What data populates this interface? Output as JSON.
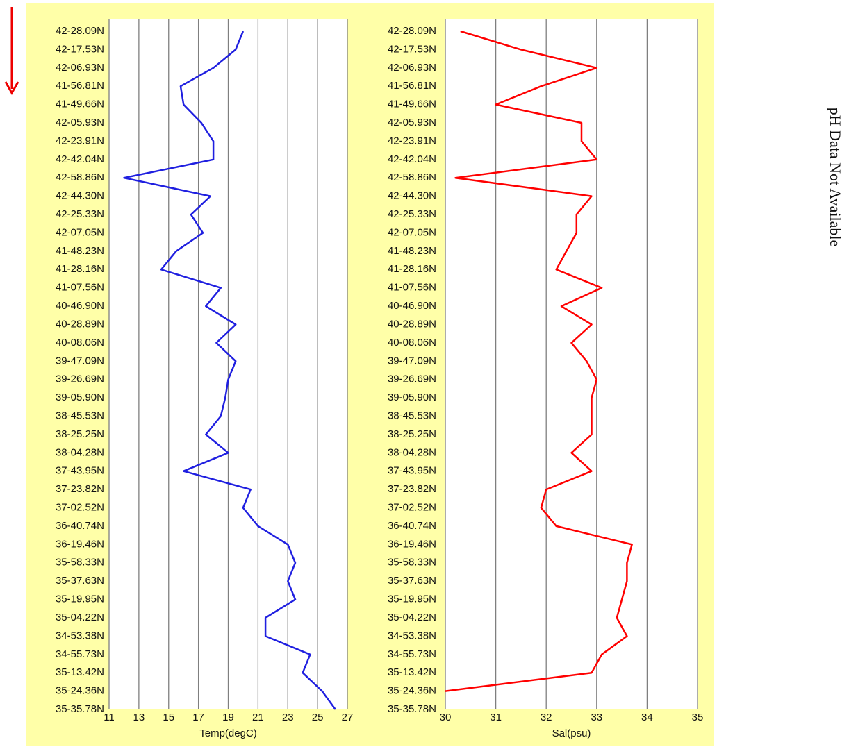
{
  "chart_data": [
    {
      "type": "line",
      "x_label": "Temp(degC)",
      "color": "#1f1fe0",
      "categories": [
        "42-28.09N",
        "42-17.53N",
        "42-06.93N",
        "41-56.81N",
        "41-49.66N",
        "42-05.93N",
        "42-23.91N",
        "42-42.04N",
        "42-58.86N",
        "42-44.30N",
        "42-25.33N",
        "42-07.05N",
        "41-48.23N",
        "41-28.16N",
        "41-07.56N",
        "40-46.90N",
        "40-28.89N",
        "40-08.06N",
        "39-47.09N",
        "39-26.69N",
        "39-05.90N",
        "38-45.53N",
        "38-25.25N",
        "38-04.28N",
        "37-43.95N",
        "37-23.82N",
        "37-02.52N",
        "36-40.74N",
        "36-19.46N",
        "35-58.33N",
        "35-37.63N",
        "35-19.95N",
        "35-04.22N",
        "34-53.38N",
        "34-55.73N",
        "35-13.42N",
        "35-24.36N",
        "35-35.78N"
      ],
      "values": [
        20,
        19.5,
        18,
        15.8,
        16,
        17.2,
        18,
        18,
        12,
        17.8,
        16.5,
        17.3,
        15.5,
        14.5,
        18.5,
        17.5,
        19.5,
        18.2,
        19.5,
        19,
        18.8,
        18.5,
        17.5,
        19,
        16,
        20.5,
        20,
        21,
        23,
        23.5,
        23,
        23.5,
        21.5,
        21.5,
        24.5,
        24,
        25.3,
        26.2
      ],
      "xlim": [
        11,
        27
      ],
      "xticks": [
        11,
        13,
        15,
        17,
        19,
        21,
        23,
        25,
        27
      ],
      "grid": true
    },
    {
      "type": "line",
      "x_label": "Sal(psu)",
      "color": "#ff0000",
      "categories": [
        "42-28.09N",
        "42-17.53N",
        "42-06.93N",
        "41-56.81N",
        "41-49.66N",
        "42-05.93N",
        "42-23.91N",
        "42-42.04N",
        "42-58.86N",
        "42-44.30N",
        "42-25.33N",
        "42-07.05N",
        "41-48.23N",
        "41-28.16N",
        "41-07.56N",
        "40-46.90N",
        "40-28.89N",
        "40-08.06N",
        "39-47.09N",
        "39-26.69N",
        "39-05.90N",
        "38-45.53N",
        "38-25.25N",
        "38-04.28N",
        "37-43.95N",
        "37-23.82N",
        "37-02.52N",
        "36-40.74N",
        "36-19.46N",
        "35-58.33N",
        "35-37.63N",
        "35-19.95N",
        "35-04.22N",
        "34-53.38N",
        "34-55.73N",
        "35-13.42N",
        "35-24.36N",
        "35-35.78N"
      ],
      "values": [
        30.3,
        31.5,
        33,
        31.9,
        31,
        32.7,
        32.7,
        33,
        30.2,
        32.9,
        32.6,
        32.6,
        32.4,
        32.2,
        33.1,
        32.3,
        32.9,
        32.5,
        32.8,
        33,
        32.9,
        32.9,
        32.9,
        32.5,
        32.9,
        32,
        31.9,
        32.2,
        33.7,
        33.6,
        33.6,
        33.5,
        33.4,
        33.6,
        33.1,
        32.9,
        30,
        null
      ],
      "xlim": [
        30,
        35
      ],
      "xticks": [
        30,
        31,
        32,
        33,
        34,
        35
      ],
      "grid": true
    }
  ],
  "ph_panel": {
    "message": "pH Data Not Available"
  }
}
